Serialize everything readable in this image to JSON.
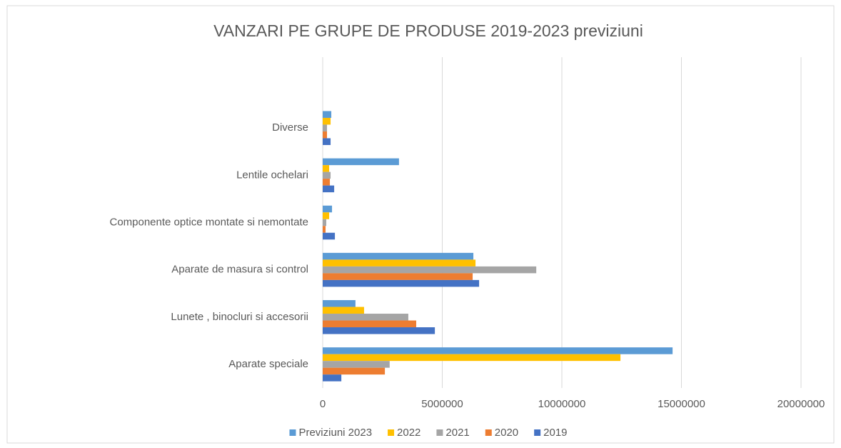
{
  "chart_data": {
    "type": "bar",
    "orientation": "horizontal",
    "title": "VANZARI PE GRUPE DE PRODUSE 2019-2023 previziuni",
    "categories": [
      "Aparate speciale",
      "Lunete , binocluri si accesorii",
      "Aparate de masura si control",
      "Componente optice montate si nemontate",
      "Lentile ochelari",
      "Diverse",
      null
    ],
    "series": [
      {
        "name": "Previziuni 2023",
        "color": "#5b9bd5",
        "values": [
          14630000,
          1370000,
          6300000,
          390000,
          3190000,
          360000,
          null
        ]
      },
      {
        "name": "2022",
        "color": "#ffc000",
        "values": [
          12450000,
          1730000,
          6390000,
          270000,
          270000,
          330000,
          null
        ]
      },
      {
        "name": "2021",
        "color": "#a5a5a5",
        "values": [
          2800000,
          3580000,
          8930000,
          150000,
          330000,
          180000,
          null
        ]
      },
      {
        "name": "2020",
        "color": "#ed7d31",
        "values": [
          2600000,
          3910000,
          6270000,
          120000,
          300000,
          180000,
          null
        ]
      },
      {
        "name": "2019",
        "color": "#4472c4",
        "values": [
          780000,
          4690000,
          6540000,
          510000,
          480000,
          330000,
          null
        ]
      }
    ],
    "xlim": [
      0,
      20000000
    ],
    "xticks": [
      0,
      5000000,
      10000000,
      15000000,
      20000000
    ],
    "grid": true,
    "legend": "bottom"
  }
}
